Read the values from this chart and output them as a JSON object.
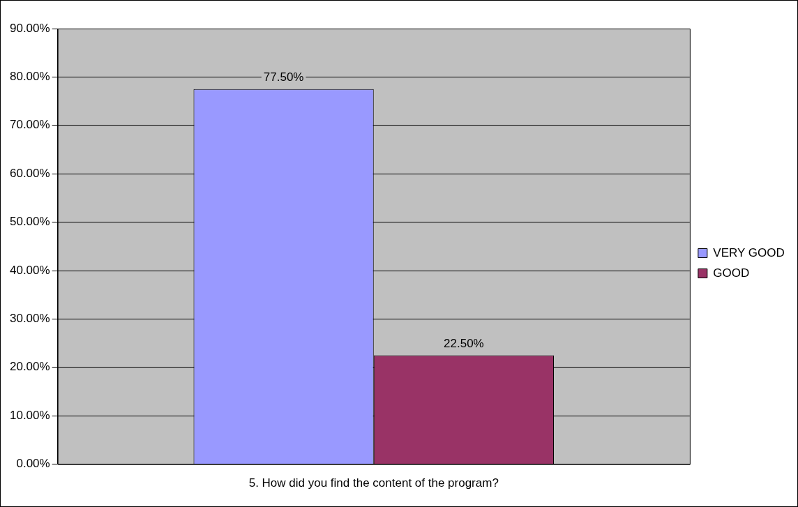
{
  "chart_data": {
    "type": "bar",
    "categories": [
      "5. How did you find the content of the program?"
    ],
    "series": [
      {
        "name": "VERY GOOD",
        "color": "#9999ff",
        "values": [
          77.5
        ],
        "value_labels": [
          "77.50%"
        ]
      },
      {
        "name": "GOOD",
        "color": "#993366",
        "values": [
          22.5
        ],
        "value_labels": [
          "22.50%"
        ]
      }
    ],
    "ylim": [
      0,
      90
    ],
    "yticks": [
      {
        "value": 0,
        "label": "0.00%"
      },
      {
        "value": 10,
        "label": "10.00%"
      },
      {
        "value": 20,
        "label": "20.00%"
      },
      {
        "value": 30,
        "label": "30.00%"
      },
      {
        "value": 40,
        "label": "40.00%"
      },
      {
        "value": 50,
        "label": "50.00%"
      },
      {
        "value": 60,
        "label": "60.00%"
      },
      {
        "value": 70,
        "label": "70.00%"
      },
      {
        "value": 80,
        "label": "80.00%"
      },
      {
        "value": 90,
        "label": "90.00%"
      }
    ],
    "grid": "y",
    "legend": "right"
  }
}
